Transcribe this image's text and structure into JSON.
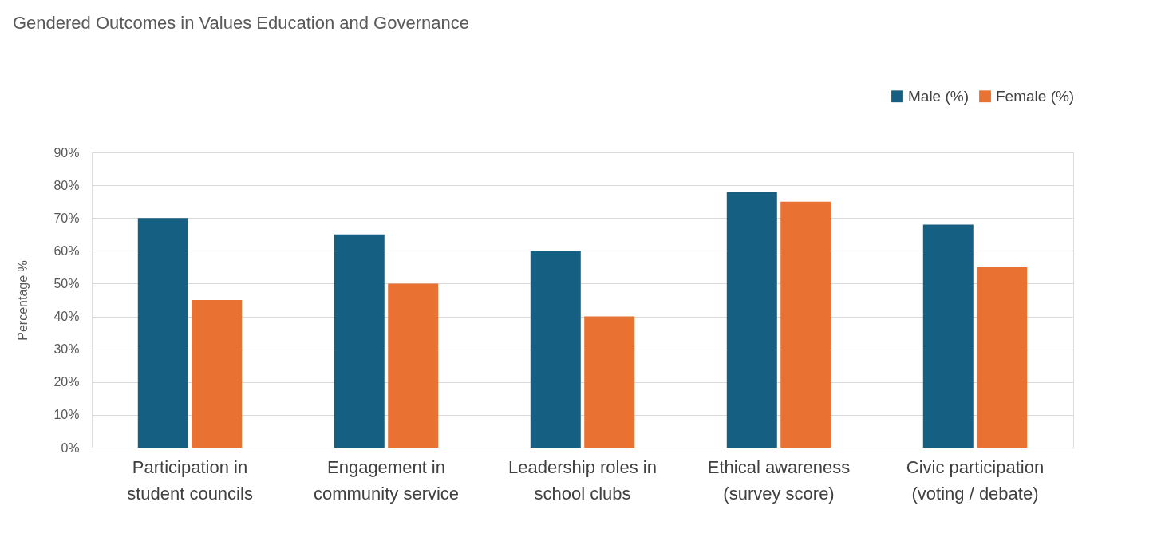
{
  "chart_data": {
    "type": "bar",
    "title": "Gendered Outcomes in Values Education and Governance",
    "ylabel": "Percentage %",
    "categories": [
      "Participation in student councils",
      "Engagement in community service",
      "Leadership roles in school clubs",
      "Ethical awareness (survey score)",
      "Civic participation (voting / debate)"
    ],
    "series": [
      {
        "name": "Male (%)",
        "color": "#156082",
        "values": [
          70,
          65,
          60,
          78,
          68
        ]
      },
      {
        "name": "Female (%)",
        "color": "#e97132",
        "values": [
          45,
          50,
          40,
          75,
          55
        ]
      }
    ],
    "ylim": [
      0,
      90
    ],
    "yticks": [
      {
        "value": 0,
        "label": "0%"
      },
      {
        "value": 10,
        "label": "10%"
      },
      {
        "value": 20,
        "label": "20%"
      },
      {
        "value": 30,
        "label": "30%"
      },
      {
        "value": 40,
        "label": "40%"
      },
      {
        "value": 50,
        "label": "50%"
      },
      {
        "value": 60,
        "label": "60%"
      },
      {
        "value": 70,
        "label": "70%"
      },
      {
        "value": 80,
        "label": "80%"
      },
      {
        "value": 90,
        "label": "90%"
      }
    ],
    "grid": "y",
    "legend": "top right"
  }
}
